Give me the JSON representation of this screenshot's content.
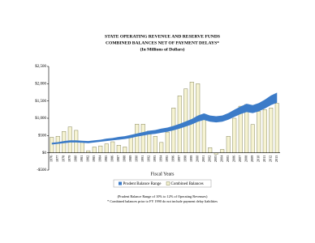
{
  "chart_data": {
    "type": "bar-range",
    "title": "STATE OPERATING REVENUE AND RESERVE FUNDS",
    "subtitle": "COMBINED BALANCES NET OF PAYMENT DELAYS*",
    "units_note": "(In Millions of Dollars)",
    "x_label": "Fiscal Years",
    "notes": [
      "(Prudent Balance Range of 10% to 12% of Operating Revenues)",
      "* Combined balances prior to FY 1990 do not include payment delay liabilities"
    ],
    "categories": [
      "1976",
      "1977",
      "1978",
      "1979",
      "1980",
      "1981",
      "1982",
      "1983",
      "1984",
      "1985",
      "1986",
      "1987",
      "1988",
      "1989",
      "1990",
      "1991",
      "1992",
      "1993",
      "1994",
      "1995",
      "1996",
      "1997",
      "1998",
      "1999",
      "2000",
      "2001",
      "2002",
      "2003",
      "2004",
      "2005",
      "2006",
      "2007",
      "2008",
      "2009",
      "2010",
      "2011",
      "2012",
      "2013"
    ],
    "series": [
      {
        "name": "Prudent Balance Range",
        "color": "#3b7bc8",
        "low": [
          240,
          260,
          280,
          300,
          300,
          290,
          280,
          300,
          320,
          340,
          360,
          380,
          400,
          430,
          470,
          500,
          530,
          550,
          580,
          610,
          650,
          700,
          760,
          820,
          900,
          950,
          900,
          880,
          900,
          960,
          1040,
          1120,
          1180,
          1150,
          1200,
          1280,
          1380,
          1450
        ],
        "high": [
          290,
          310,
          340,
          360,
          360,
          350,
          340,
          360,
          380,
          410,
          430,
          460,
          480,
          520,
          560,
          600,
          640,
          660,
          700,
          730,
          780,
          840,
          910,
          980,
          1080,
          1140,
          1080,
          1060,
          1080,
          1150,
          1250,
          1340,
          1420,
          1380,
          1440,
          1540,
          1660,
          1740
        ]
      },
      {
        "name": "Combined Balances",
        "color": "#f6f3d2",
        "values": [
          450,
          480,
          620,
          750,
          650,
          330,
          60,
          170,
          200,
          260,
          320,
          220,
          170,
          470,
          830,
          830,
          630,
          480,
          300,
          600,
          1300,
          1650,
          1850,
          2050,
          2000,
          1000,
          150,
          -40,
          100,
          480,
          1000,
          1350,
          1400,
          820,
          1200,
          1250,
          1300,
          1430
        ]
      }
    ],
    "ylim": [
      -500,
      2500
    ],
    "yticks": [
      {
        "value": -500,
        "label": "-$500"
      },
      {
        "value": 0,
        "label": "$0"
      },
      {
        "value": 500,
        "label": "$500"
      },
      {
        "value": 1000,
        "label": "$1,000"
      },
      {
        "value": 1500,
        "label": "$1,500"
      },
      {
        "value": 2000,
        "label": "$2,000"
      },
      {
        "value": 2500,
        "label": "$2,500"
      }
    ]
  }
}
